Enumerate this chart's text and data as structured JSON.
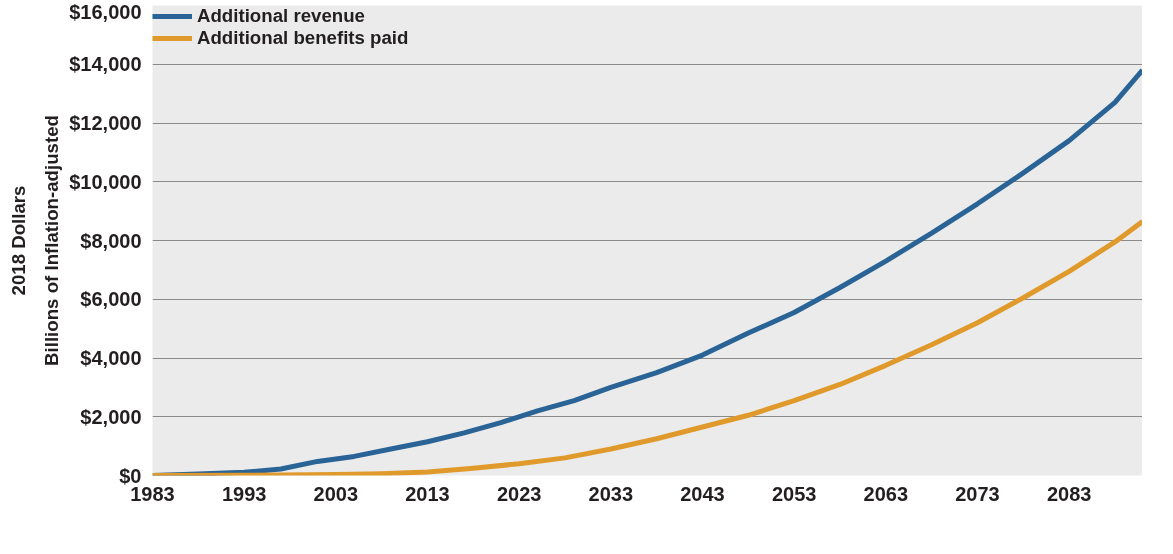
{
  "chart_data": {
    "type": "line",
    "ylabel": "Billions of Inflation-adjusted\n2018 Dollars",
    "xlim": [
      1983,
      2091
    ],
    "xticks": [
      1983,
      1993,
      2003,
      2013,
      2023,
      2033,
      2043,
      2053,
      2063,
      2073,
      2083
    ],
    "ylim": [
      0,
      16000
    ],
    "yticks": [
      {
        "value": 0,
        "label": "$0"
      },
      {
        "value": 2000,
        "label": "$2,000"
      },
      {
        "value": 4000,
        "label": "$4,000"
      },
      {
        "value": 6000,
        "label": "$6,000"
      },
      {
        "value": 8000,
        "label": "$8,000"
      },
      {
        "value": 10000,
        "label": "$10,000"
      },
      {
        "value": 12000,
        "label": "$12,000"
      },
      {
        "value": 14000,
        "label": "$14,000"
      },
      {
        "value": 16000,
        "label": "$16,000"
      }
    ],
    "grid": "y",
    "legend": "top left",
    "marker": "none",
    "line_style": "solid",
    "series": [
      {
        "name": "Additional revenue",
        "color": "#2a6496",
        "x": [
          1983,
          1988,
          1993,
          1997,
          2001,
          2005,
          2009,
          2013,
          2017,
          2021,
          2025,
          2029,
          2033,
          2038,
          2043,
          2048,
          2053,
          2058,
          2063,
          2068,
          2073,
          2078,
          2083,
          2088,
          2091
        ],
        "values": [
          0,
          50,
          110,
          220,
          480,
          650,
          900,
          1150,
          1450,
          1800,
          2200,
          2550,
          3000,
          3500,
          4100,
          4850,
          5550,
          6400,
          7300,
          8250,
          9250,
          10300,
          11400,
          12700,
          13800
        ]
      },
      {
        "name": "Additional benefits paid",
        "color": "#e09a2b",
        "x": [
          1983,
          1993,
          2003,
          2008,
          2013,
          2018,
          2023,
          2028,
          2033,
          2038,
          2043,
          2048,
          2053,
          2058,
          2063,
          2068,
          2073,
          2078,
          2083,
          2088,
          2091
        ],
        "values": [
          0,
          10,
          30,
          60,
          120,
          250,
          400,
          600,
          900,
          1250,
          1650,
          2050,
          2550,
          3100,
          3750,
          4450,
          5200,
          6050,
          6950,
          7950,
          8650
        ]
      }
    ]
  }
}
